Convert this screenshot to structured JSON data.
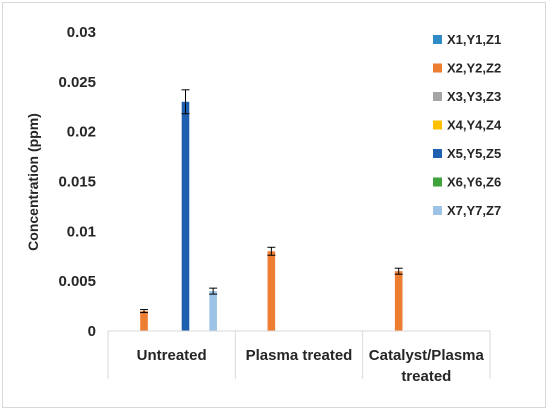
{
  "chart_data": {
    "type": "bar",
    "ylabel": "Concentration (ppm)",
    "ylim": [
      0,
      0.03
    ],
    "yticks": [
      "0",
      "0.005",
      "0.01",
      "0.015",
      "0.02",
      "0.025",
      "0.03"
    ],
    "grid": false,
    "legend_position": "right",
    "categories": [
      [
        "Untreated"
      ],
      [
        "Plasma treated"
      ],
      [
        "Catalyst/Plasma",
        "treated"
      ]
    ],
    "series": [
      {
        "name": "X1,Y1,Z1",
        "color": "#2E8BC6",
        "values": [
          null,
          null,
          null
        ],
        "errors": [
          null,
          null,
          null
        ]
      },
      {
        "name": "X2,Y2,Z2",
        "color": "#ED7D31",
        "values": [
          0.002,
          0.008,
          0.006
        ],
        "errors": [
          0.00015,
          0.0004,
          0.0003
        ]
      },
      {
        "name": "X3,Y3,Z3",
        "color": "#A5A5A5",
        "values": [
          null,
          null,
          null
        ],
        "errors": [
          null,
          null,
          null
        ]
      },
      {
        "name": "X4,Y4,Z4",
        "color": "#FFC000",
        "values": [
          null,
          null,
          null
        ],
        "errors": [
          null,
          null,
          null
        ]
      },
      {
        "name": "X5,Y5,Z5",
        "color": "#1F5FAF",
        "values": [
          0.023,
          null,
          null
        ],
        "errors": [
          0.0012,
          null,
          null
        ]
      },
      {
        "name": "X6,Y6,Z6",
        "color": "#3FA33C",
        "values": [
          null,
          null,
          null
        ],
        "errors": [
          null,
          null,
          null
        ]
      },
      {
        "name": "X7,Y7,Z7",
        "color": "#9DC3E6",
        "values": [
          0.004,
          null,
          null
        ],
        "errors": [
          0.0003,
          null,
          null
        ]
      }
    ]
  }
}
